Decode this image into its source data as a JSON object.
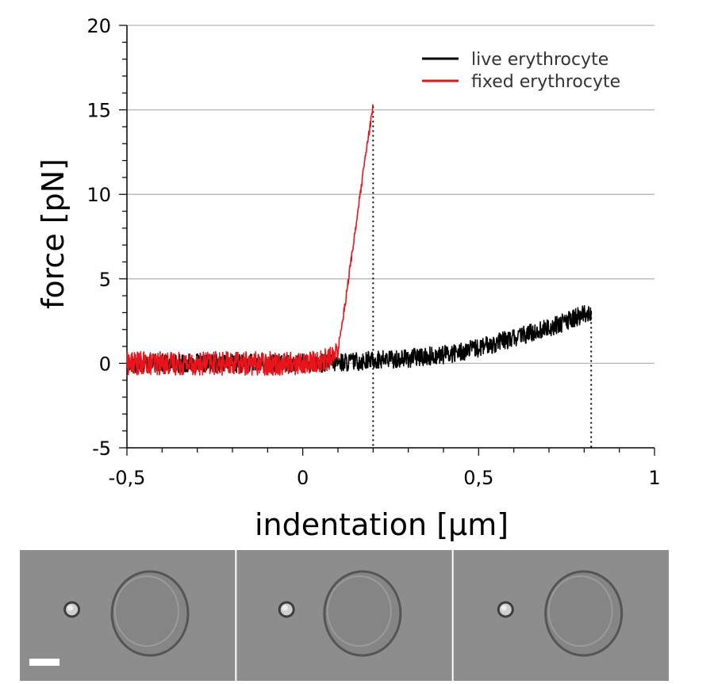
{
  "chart_data": {
    "type": "line",
    "xlabel": "indentation [µm]",
    "ylabel": "force [pN]",
    "xlim": [
      -0.5,
      1.0
    ],
    "ylim": [
      -5,
      20
    ],
    "x_ticks": [
      -0.5,
      0,
      0.5,
      1
    ],
    "x_tick_labels": [
      "-0,5",
      "0",
      "0,5",
      "1"
    ],
    "y_ticks": [
      -5,
      0,
      5,
      10,
      15,
      20
    ],
    "y_tick_labels": [
      "-5",
      "0",
      "5",
      "10",
      "15",
      "20"
    ],
    "grid": "horizontal",
    "legend_position": "top-right",
    "series": [
      {
        "name": "live erythrocyte",
        "color": "#000000",
        "x": [
          -0.5,
          0.0,
          0.05,
          0.1,
          0.15,
          0.2,
          0.25,
          0.3,
          0.35,
          0.4,
          0.45,
          0.5,
          0.55,
          0.6,
          0.65,
          0.7,
          0.75,
          0.8,
          0.82
        ],
        "y": [
          0.0,
          0.0,
          0.0,
          0.05,
          0.1,
          0.2,
          0.25,
          0.3,
          0.4,
          0.5,
          0.7,
          0.9,
          1.2,
          1.5,
          1.8,
          2.1,
          2.5,
          2.9,
          3.0
        ]
      },
      {
        "name": "fixed erythrocyte",
        "color": "#e8141c",
        "x": [
          -0.5,
          0.0,
          0.05,
          0.09,
          0.1,
          0.12,
          0.14,
          0.16,
          0.18,
          0.2
        ],
        "y": [
          0.0,
          0.0,
          0.1,
          0.4,
          0.8,
          3.5,
          6.5,
          9.5,
          12.5,
          15.2
        ]
      }
    ],
    "markers": [
      {
        "x": 0.2,
        "y_top": 15.2
      },
      {
        "x": 0.82,
        "y_top": 3.0
      }
    ]
  },
  "micrograph": {
    "panels": 3,
    "background": "#8d8d8d",
    "cell_fill": "#858585",
    "cell_edge": "#555555",
    "bead_x_fractions": [
      0.24,
      0.23,
      0.24
    ],
    "cell_x_fractions": [
      0.6,
      0.58,
      0.6
    ],
    "scale_bar_color": "#ffffff"
  }
}
